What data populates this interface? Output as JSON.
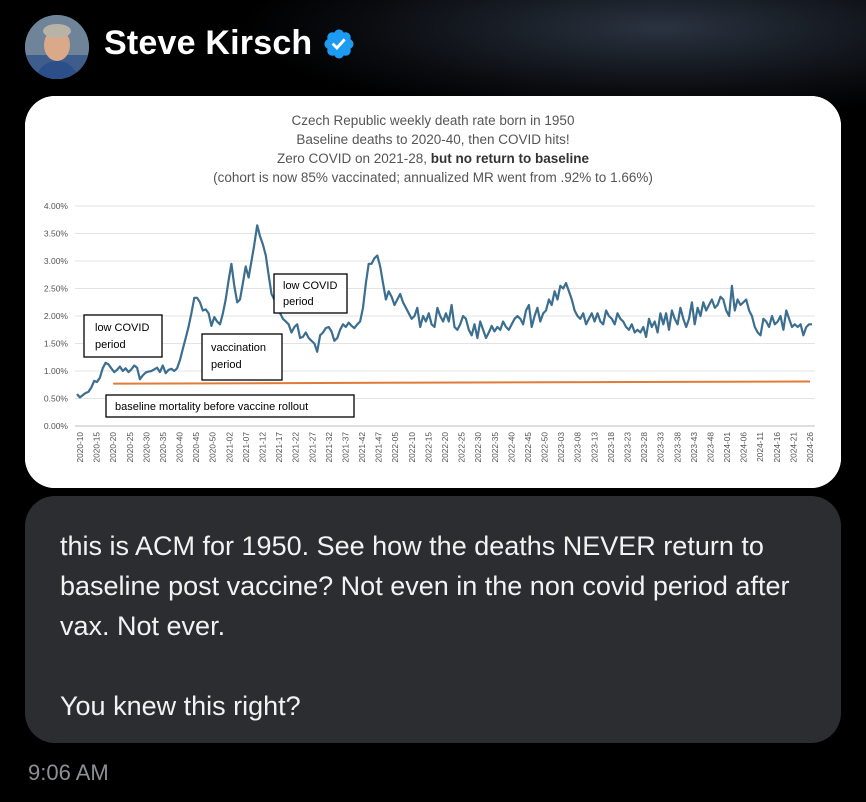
{
  "post": {
    "author_name": "Steve Kirsch",
    "verified": true,
    "message": "this is ACM for 1950. See how the deaths NEVER return to baseline post vaccine? Not even in the non covid period after vax. Not ever.\n\nYou knew this right?",
    "timestamp": "9:06 AM"
  },
  "colors": {
    "verified_badge": "#1d9bf0",
    "series_line": "#3b6e8f",
    "baseline_line": "#e07b39",
    "bubble_bg": "#2b2d30"
  },
  "chart_data": {
    "type": "line",
    "title_lines": [
      {
        "text": "Czech Republic weekly death rate born in 1950",
        "bold_part": ""
      },
      {
        "text": "Baseline deaths to 2020-40, then COVID hits!",
        "bold_part": ""
      },
      {
        "text": "Zero COVID on 2021-28, ",
        "bold_part": "but no return to baseline"
      },
      {
        "text": "(cohort is now 85% vaccinated; annualized MR went from .92% to 1.66%)",
        "bold_part": ""
      }
    ],
    "y_ticks": [
      "0.00%",
      "0.50%",
      "1.00%",
      "1.50%",
      "2.00%",
      "2.50%",
      "3.00%",
      "3.50%",
      "4.00%"
    ],
    "ylim": [
      0,
      4
    ],
    "x_ticks": [
      "2020-10",
      "2020-15",
      "2020-20",
      "2020-25",
      "2020-30",
      "2020-35",
      "2020-40",
      "2020-45",
      "2020-50",
      "2021-02",
      "2021-07",
      "2021-12",
      "2021-17",
      "2021-22",
      "2021-27",
      "2021-32",
      "2021-37",
      "2021-42",
      "2021-47",
      "2022-05",
      "2022-10",
      "2022-15",
      "2022-20",
      "2022-25",
      "2022-30",
      "2022-35",
      "2022-40",
      "2022-45",
      "2022-50",
      "2023-03",
      "2023-08",
      "2023-13",
      "2023-18",
      "2023-23",
      "2023-28",
      "2023-33",
      "2023-38",
      "2023-43",
      "2023-48",
      "2024-01",
      "2024-06",
      "2024-11",
      "2024-16",
      "2024-21",
      "2024-26"
    ],
    "series": [
      {
        "name": "",
        "values": [
          0.58,
          0.52,
          0.56,
          0.6,
          0.62,
          0.7,
          0.82,
          0.8,
          0.88,
          1.05,
          1.15,
          1.12,
          1.05,
          0.98,
          1.02,
          1.08,
          1.0,
          1.05,
          0.98,
          1.03,
          1.1,
          1.06,
          0.85,
          0.92,
          0.97,
          0.99,
          1.0,
          1.03,
          1.06,
          0.98,
          1.1,
          0.96,
          1.02,
          1.04,
          1.0,
          1.05,
          1.2,
          1.4,
          1.6,
          1.8,
          2.05,
          2.33,
          2.33,
          2.25,
          2.1,
          2.12,
          2.05,
          1.82,
          1.98,
          1.9,
          1.85,
          2.05,
          2.3,
          2.65,
          2.95,
          2.55,
          2.25,
          2.3,
          2.6,
          2.9,
          2.7,
          3.0,
          3.3,
          3.65,
          3.45,
          3.3,
          3.1,
          2.75,
          2.4,
          2.3,
          2.1,
          2.05,
          1.95,
          1.9,
          1.85,
          1.7,
          1.8,
          1.85,
          1.6,
          1.62,
          1.7,
          1.6,
          1.55,
          1.5,
          1.35,
          1.65,
          1.7,
          1.78,
          1.8,
          1.72,
          1.55,
          1.6,
          1.75,
          1.85,
          1.8,
          1.88,
          1.82,
          1.78,
          1.85,
          1.9,
          2.15,
          2.6,
          2.95,
          2.95,
          3.05,
          3.1,
          2.9,
          2.6,
          2.3,
          2.45,
          2.35,
          2.2,
          2.3,
          2.4,
          2.25,
          2.15,
          2.05,
          1.95,
          2.0,
          2.15,
          1.8,
          2.0,
          1.9,
          2.05,
          1.85,
          1.8,
          2.15,
          2.0,
          1.9,
          2.05,
          1.9,
          2.2,
          1.8,
          1.75,
          1.85,
          2.0,
          1.95,
          1.75,
          1.65,
          1.85,
          1.6,
          1.9,
          1.75,
          1.6,
          1.7,
          1.82,
          1.72,
          1.8,
          1.75,
          1.9,
          1.8,
          1.75,
          1.85,
          1.95,
          2.0,
          1.95,
          1.85,
          2.1,
          2.2,
          1.8,
          2.0,
          2.15,
          1.9,
          2.05,
          2.1,
          2.3,
          2.2,
          2.45,
          2.3,
          2.55,
          2.5,
          2.6,
          2.45,
          2.3,
          2.1,
          2.0,
          1.95,
          2.05,
          1.85,
          1.95,
          2.05,
          1.9,
          2.05,
          1.9,
          1.85,
          2.1,
          2.0,
          1.95,
          1.85,
          2.05,
          1.95,
          1.9,
          1.8,
          1.75,
          1.85,
          1.7,
          1.75,
          1.7,
          1.8,
          1.62,
          1.95,
          1.8,
          1.9,
          1.7,
          2.05,
          1.85,
          2.05,
          1.75,
          2.1,
          1.95,
          1.85,
          2.15,
          1.95,
          1.8,
          1.95,
          2.25,
          1.85,
          2.15,
          2.0,
          2.25,
          2.1,
          2.2,
          2.3,
          2.15,
          2.2,
          2.35,
          2.3,
          2.1,
          2.0,
          2.55,
          2.1,
          2.3,
          2.2,
          2.25,
          2.3,
          2.1,
          2.0,
          1.8,
          1.7,
          1.65,
          1.95,
          1.9,
          1.8,
          2.0,
          1.85,
          1.9,
          2.0,
          1.75,
          2.1,
          1.95,
          1.8,
          1.85,
          1.8,
          1.85,
          1.65,
          1.8,
          1.85,
          1.85
        ]
      },
      {
        "name": "baseline mortality before vaccine rollout",
        "values": [
          0.77,
          0.81
        ],
        "x_range": [
          "2020-20",
          "2024-26"
        ]
      }
    ],
    "annotations": [
      {
        "id": "low-covid-1",
        "lines": [
          "low COVID",
          "period"
        ]
      },
      {
        "id": "vaccination",
        "lines": [
          "vaccination",
          "period"
        ]
      },
      {
        "id": "low-covid-2",
        "lines": [
          "low COVID",
          "period"
        ]
      },
      {
        "id": "baseline",
        "lines": [
          "baseline mortality before vaccine rollout"
        ]
      }
    ]
  }
}
